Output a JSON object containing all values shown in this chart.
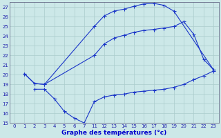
{
  "bg_color": "#cce8e8",
  "line_color": "#1a35c8",
  "grid_color": "#aacccc",
  "title": "Graphe des températures (°c)",
  "ylim": [
    15,
    27.5
  ],
  "yticks": [
    15,
    16,
    17,
    18,
    19,
    20,
    21,
    22,
    23,
    24,
    25,
    26,
    27
  ],
  "xlabel_color": "#0000cc",
  "xtick_labels": [
    "0",
    "1",
    "2",
    "3",
    "4",
    "5",
    "6",
    "7",
    "11",
    "12",
    "13",
    "14",
    "15",
    "16",
    "17",
    "18",
    "19",
    "20",
    "21",
    "22",
    "23"
  ],
  "n_xticks": 21,
  "line1_x_idx": [
    1,
    2,
    3,
    8,
    9,
    10,
    11,
    12,
    13,
    14,
    15,
    16,
    20
  ],
  "line1_y": [
    20.1,
    19.1,
    19.0,
    25.0,
    26.1,
    26.6,
    26.8,
    27.1,
    27.35,
    27.4,
    27.2,
    26.6,
    20.5
  ],
  "line2_x_idx": [
    1,
    2,
    3,
    8,
    9,
    10,
    11,
    12,
    13,
    14,
    15,
    16,
    17,
    18,
    19,
    20
  ],
  "line2_y": [
    20.1,
    19.1,
    19.0,
    22.0,
    23.2,
    23.8,
    24.1,
    24.4,
    24.6,
    24.7,
    24.85,
    25.0,
    25.5,
    24.2,
    21.6,
    20.5
  ],
  "line3_x_idx": [
    2,
    3,
    4,
    5,
    6,
    7,
    8,
    9,
    10,
    11,
    12,
    13,
    14,
    15,
    16,
    17,
    18,
    19,
    20
  ],
  "line3_y": [
    18.5,
    18.5,
    17.5,
    16.2,
    15.5,
    15.0,
    17.2,
    17.7,
    17.9,
    18.0,
    18.2,
    18.3,
    18.4,
    18.5,
    18.7,
    19.0,
    19.5,
    19.9,
    20.4
  ]
}
